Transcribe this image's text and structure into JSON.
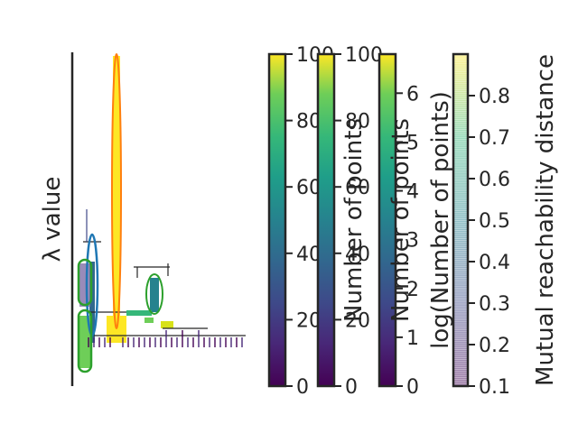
{
  "chart_data": [
    {
      "type": "dendrogram",
      "title": "",
      "ylabel": "λ value",
      "xlabel": "",
      "colors": {
        "axis": "#262626",
        "selected_clusters": [
          "#ff7f0e",
          "#1f77b4",
          "#2ca02c",
          "#2ca02c"
        ],
        "cmap": "viridis"
      }
    },
    {
      "type": "colorbar",
      "label": "",
      "ticks": [
        "0",
        "20",
        "40",
        "60",
        "80",
        "100"
      ],
      "range": [
        0,
        100
      ],
      "cmap": "viridis"
    },
    {
      "type": "colorbar",
      "label": "Number of points",
      "ticks": [
        "0",
        "20",
        "40",
        "60",
        "80",
        "100"
      ],
      "range": [
        0,
        100
      ],
      "cmap": "viridis"
    },
    {
      "type": "colorbar",
      "label": "Number of points",
      "label2": "log(Number of points)",
      "ticks": [
        "0",
        "1",
        "2",
        "3",
        "4",
        "5",
        "6"
      ],
      "range": [
        0,
        6.8
      ],
      "cmap": "viridis"
    },
    {
      "type": "colorbar",
      "label": "Mutual reachability distance",
      "ticks": [
        "0.1",
        "0.2",
        "0.3",
        "0.4",
        "0.5",
        "0.6",
        "0.7",
        "0.8"
      ],
      "range": [
        0.1,
        0.9
      ],
      "cmap": "viridis",
      "alpha": 0.5
    }
  ]
}
